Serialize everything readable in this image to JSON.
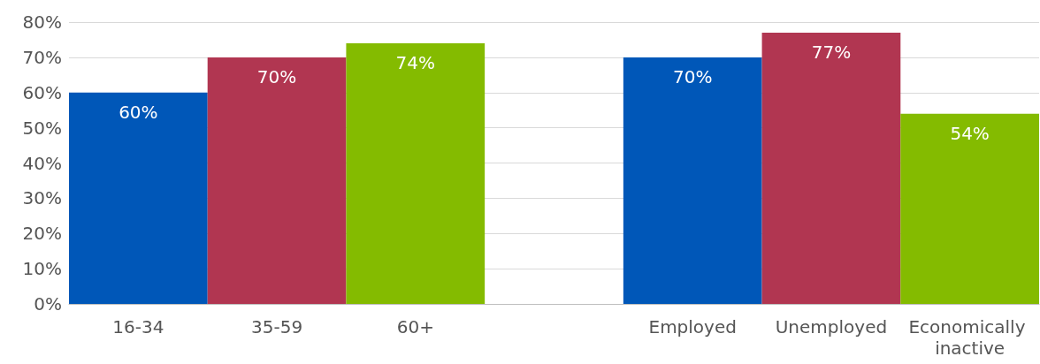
{
  "chart_data": {
    "type": "bar",
    "categories": [
      "16-34",
      "35-59",
      "60+",
      null,
      "Employed",
      "Unemployed",
      "Economically inactive"
    ],
    "values": [
      60,
      70,
      74,
      null,
      70,
      77,
      54
    ],
    "colors": [
      "#0057b8",
      "#b13651",
      "#84bb00",
      null,
      "#0057b8",
      "#b13651",
      "#84bb00"
    ],
    "value_labels": [
      "60%",
      "70%",
      "74%",
      null,
      "70%",
      "77%",
      "54%"
    ],
    "ylim": [
      0,
      80
    ],
    "yticks": [
      {
        "value": 0,
        "label": "0%"
      },
      {
        "value": 10,
        "label": "10%"
      },
      {
        "value": 20,
        "label": "20%"
      },
      {
        "value": 30,
        "label": "30%"
      },
      {
        "value": 40,
        "label": "40%"
      },
      {
        "value": 50,
        "label": "50%"
      },
      {
        "value": 60,
        "label": "60%"
      },
      {
        "value": 70,
        "label": "70%"
      },
      {
        "value": 80,
        "label": "80%"
      }
    ],
    "grid": "y"
  }
}
